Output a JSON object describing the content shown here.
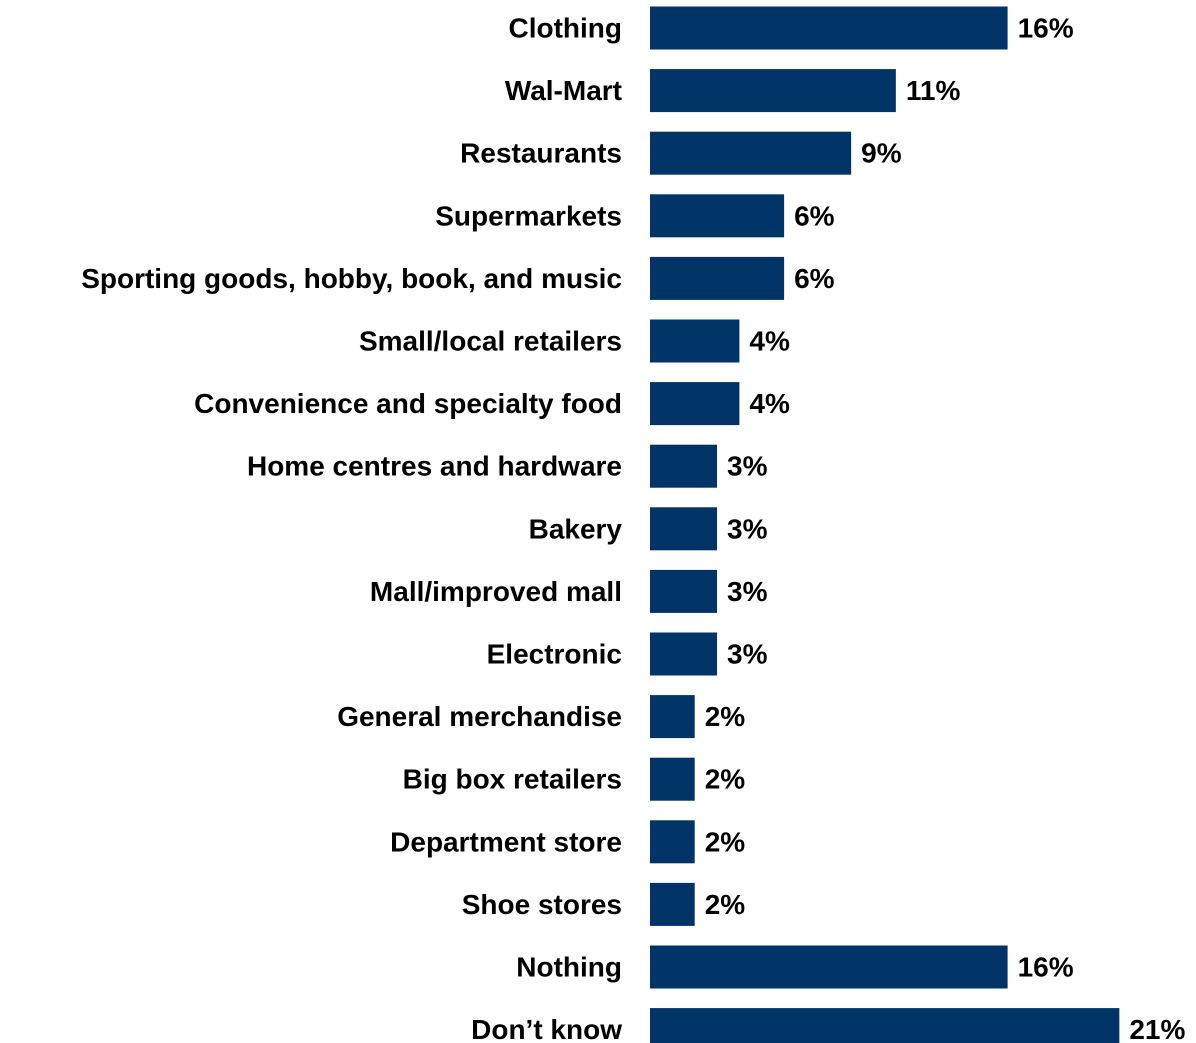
{
  "chart_data": {
    "type": "bar",
    "orientation": "horizontal",
    "categories": [
      "Clothing",
      "Wal-Mart",
      "Restaurants",
      "Supermarkets",
      "Sporting goods, hobby, book, and music",
      "Small/local retailers",
      "Convenience and specialty food",
      "Home centres and hardware",
      "Bakery",
      "Mall/improved mall",
      "Electronic",
      "General merchandise",
      "Big box retailers",
      "Department store",
      "Shoe stores",
      "Nothing",
      "Don’t know"
    ],
    "values": [
      16,
      11,
      9,
      6,
      6,
      4,
      4,
      3,
      3,
      3,
      3,
      2,
      2,
      2,
      2,
      16,
      21
    ],
    "value_labels": [
      "16%",
      "11%",
      "9%",
      "6%",
      "6%",
      "4%",
      "4%",
      "3%",
      "3%",
      "3%",
      "3%",
      "2%",
      "2%",
      "2%",
      "2%",
      "16%",
      "21%"
    ],
    "title": "",
    "xlabel": "",
    "ylabel": "",
    "xlim": [
      0,
      21
    ],
    "grid": false,
    "legend": "none",
    "bar_color": "#003366"
  }
}
